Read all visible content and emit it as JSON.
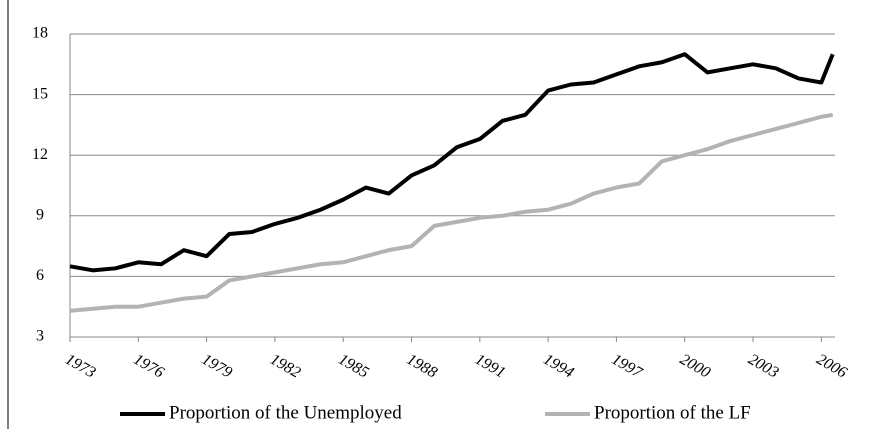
{
  "chart_data": {
    "type": "line",
    "x": [
      1973,
      1974,
      1975,
      1976,
      1977,
      1978,
      1979,
      1980,
      1981,
      1982,
      1983,
      1984,
      1985,
      1986,
      1987,
      1988,
      1989,
      1990,
      1991,
      1992,
      1993,
      1994,
      1995,
      1996,
      1997,
      1998,
      1999,
      2000,
      2001,
      2002,
      2003,
      2004,
      2005,
      2006,
      2006.5
    ],
    "series": [
      {
        "name": "Proportion of the Unemployed",
        "color": "#000000",
        "values": [
          6.5,
          6.3,
          6.4,
          6.7,
          6.6,
          7.3,
          7.0,
          8.1,
          8.2,
          8.6,
          8.9,
          9.3,
          9.8,
          10.4,
          10.1,
          11.0,
          11.5,
          12.4,
          12.8,
          13.7,
          14.0,
          15.2,
          15.5,
          15.6,
          16.0,
          16.4,
          16.6,
          17.0,
          16.1,
          16.3,
          16.5,
          16.3,
          15.8,
          15.6,
          17.0
        ]
      },
      {
        "name": "Proportion of the LF",
        "color": "#b3b3b3",
        "values": [
          4.3,
          4.4,
          4.5,
          4.5,
          4.7,
          4.9,
          5.0,
          5.8,
          6.0,
          6.2,
          6.4,
          6.6,
          6.7,
          7.0,
          7.3,
          7.5,
          8.5,
          8.7,
          8.9,
          9.0,
          9.2,
          9.3,
          9.6,
          10.1,
          10.4,
          10.6,
          11.7,
          12.0,
          12.3,
          12.7,
          13.0,
          13.3,
          13.6,
          13.9,
          14.0
        ]
      }
    ],
    "xlim": [
      1973,
      2006.6
    ],
    "xticks": [
      1973,
      1976,
      1979,
      1982,
      1985,
      1988,
      1991,
      1994,
      1997,
      2000,
      2003,
      2006
    ],
    "ylim": [
      3,
      18
    ],
    "yticks": [
      3,
      6,
      9,
      12,
      15,
      18
    ],
    "grid": true,
    "legend": "bottom"
  }
}
